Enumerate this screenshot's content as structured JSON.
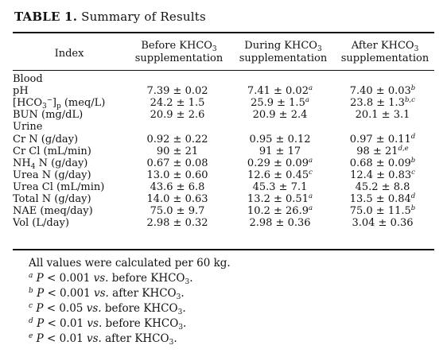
{
  "table": {
    "label": "TABLE 1.",
    "caption": "Summary of Results",
    "headers": {
      "index": "Index",
      "before": [
        "Before KHCO",
        "3",
        "supplementation"
      ],
      "during": [
        "During KHCO",
        "3",
        "supplementation"
      ],
      "after": [
        "After KHCO",
        "3",
        "supplementation"
      ]
    },
    "groups": [
      {
        "name": "Blood",
        "rows": [
          {
            "index": "pH",
            "before": "7.39 ± 0.02",
            "during": "7.41 ± 0.02",
            "during_mark": "a",
            "after": "7.40 ± 0.03",
            "after_mark": "b"
          },
          {
            "index_pre": "[HCO",
            "index_sub": "3",
            "index_sup": "−",
            "index_mid": "]",
            "index_sub2": "p",
            "index_post": " (meq/L)",
            "before": "24.2 ± 1.5",
            "during": "25.9 ± 1.5",
            "during_mark": "a",
            "after": "23.8 ± 1.3",
            "after_mark": "b,c"
          },
          {
            "index": "BUN (mg/dL)",
            "before": "20.9 ± 2.6",
            "during": "20.9 ± 2.4",
            "after": "20.1 ± 3.1"
          }
        ]
      },
      {
        "name": "Urine",
        "rows": [
          {
            "index": "Cr N (g/day)",
            "before": "0.92 ± 0.22",
            "during": "0.95 ± 0.12",
            "after": "0.97 ± 0.11",
            "after_mark": "d"
          },
          {
            "index": "Cr Cl (mL/min)",
            "before": "90 ± 21",
            "during": "91 ± 17",
            "after": "98 ± 21",
            "after_mark": "d,e"
          },
          {
            "index_pre": "NH",
            "index_sub": "4",
            "index_post": " N (g/day)",
            "before": "0.67 ± 0.08",
            "during": "0.29 ± 0.09",
            "during_mark": "a",
            "after": "0.68 ± 0.09",
            "after_mark": "b"
          },
          {
            "index": "Urea N (g/day)",
            "before": "13.0 ± 0.60",
            "during": "12.6 ± 0.45",
            "during_mark": "c",
            "after": "12.4 ± 0.83",
            "after_mark": "c"
          },
          {
            "index": "Urea Cl (mL/min)",
            "before": "43.6 ± 6.8",
            "during": "45.3 ± 7.1",
            "after": "45.2 ± 8.8"
          },
          {
            "index": "Total N (g/day)",
            "before": "14.0 ± 0.63",
            "during": "13.2 ± 0.51",
            "during_mark": "a",
            "after": "13.5 ± 0.84",
            "after_mark": "d"
          },
          {
            "index": "NAE (meq/day)",
            "before": "75.0 ± 9.7",
            "during": "10.2 ± 26.9",
            "during_mark": "a",
            "after": "75.0 ± 11.5",
            "after_mark": "b"
          },
          {
            "index": "Vol (L/day)",
            "before": "2.98 ± 0.32",
            "during": "2.98 ± 0.36",
            "after": "3.04 ± 0.36"
          }
        ]
      }
    ],
    "notes": {
      "general": "All values were calculated per 60 kg.",
      "footnotes": [
        {
          "mark": "a",
          "p": "P",
          "text": " < 0.001 ",
          "vs": "vs.",
          "ref": " before KHCO",
          "sub": "3",
          "end": "."
        },
        {
          "mark": "b",
          "p": "P",
          "text": " < 0.001 ",
          "vs": "vs.",
          "ref": " after KHCO",
          "sub": "3",
          "end": "."
        },
        {
          "mark": "c",
          "p": "P",
          "text": " < 0.05 ",
          "vs": "vs.",
          "ref": " before KHCO",
          "sub": "3",
          "end": "."
        },
        {
          "mark": "d",
          "p": "P",
          "text": " < 0.01 ",
          "vs": "vs.",
          "ref": " before KHCO",
          "sub": "3",
          "end": "."
        },
        {
          "mark": "e",
          "p": "P",
          "text": " < 0.01 ",
          "vs": "vs.",
          "ref": " after KHCO",
          "sub": "3",
          "end": "."
        }
      ]
    }
  }
}
